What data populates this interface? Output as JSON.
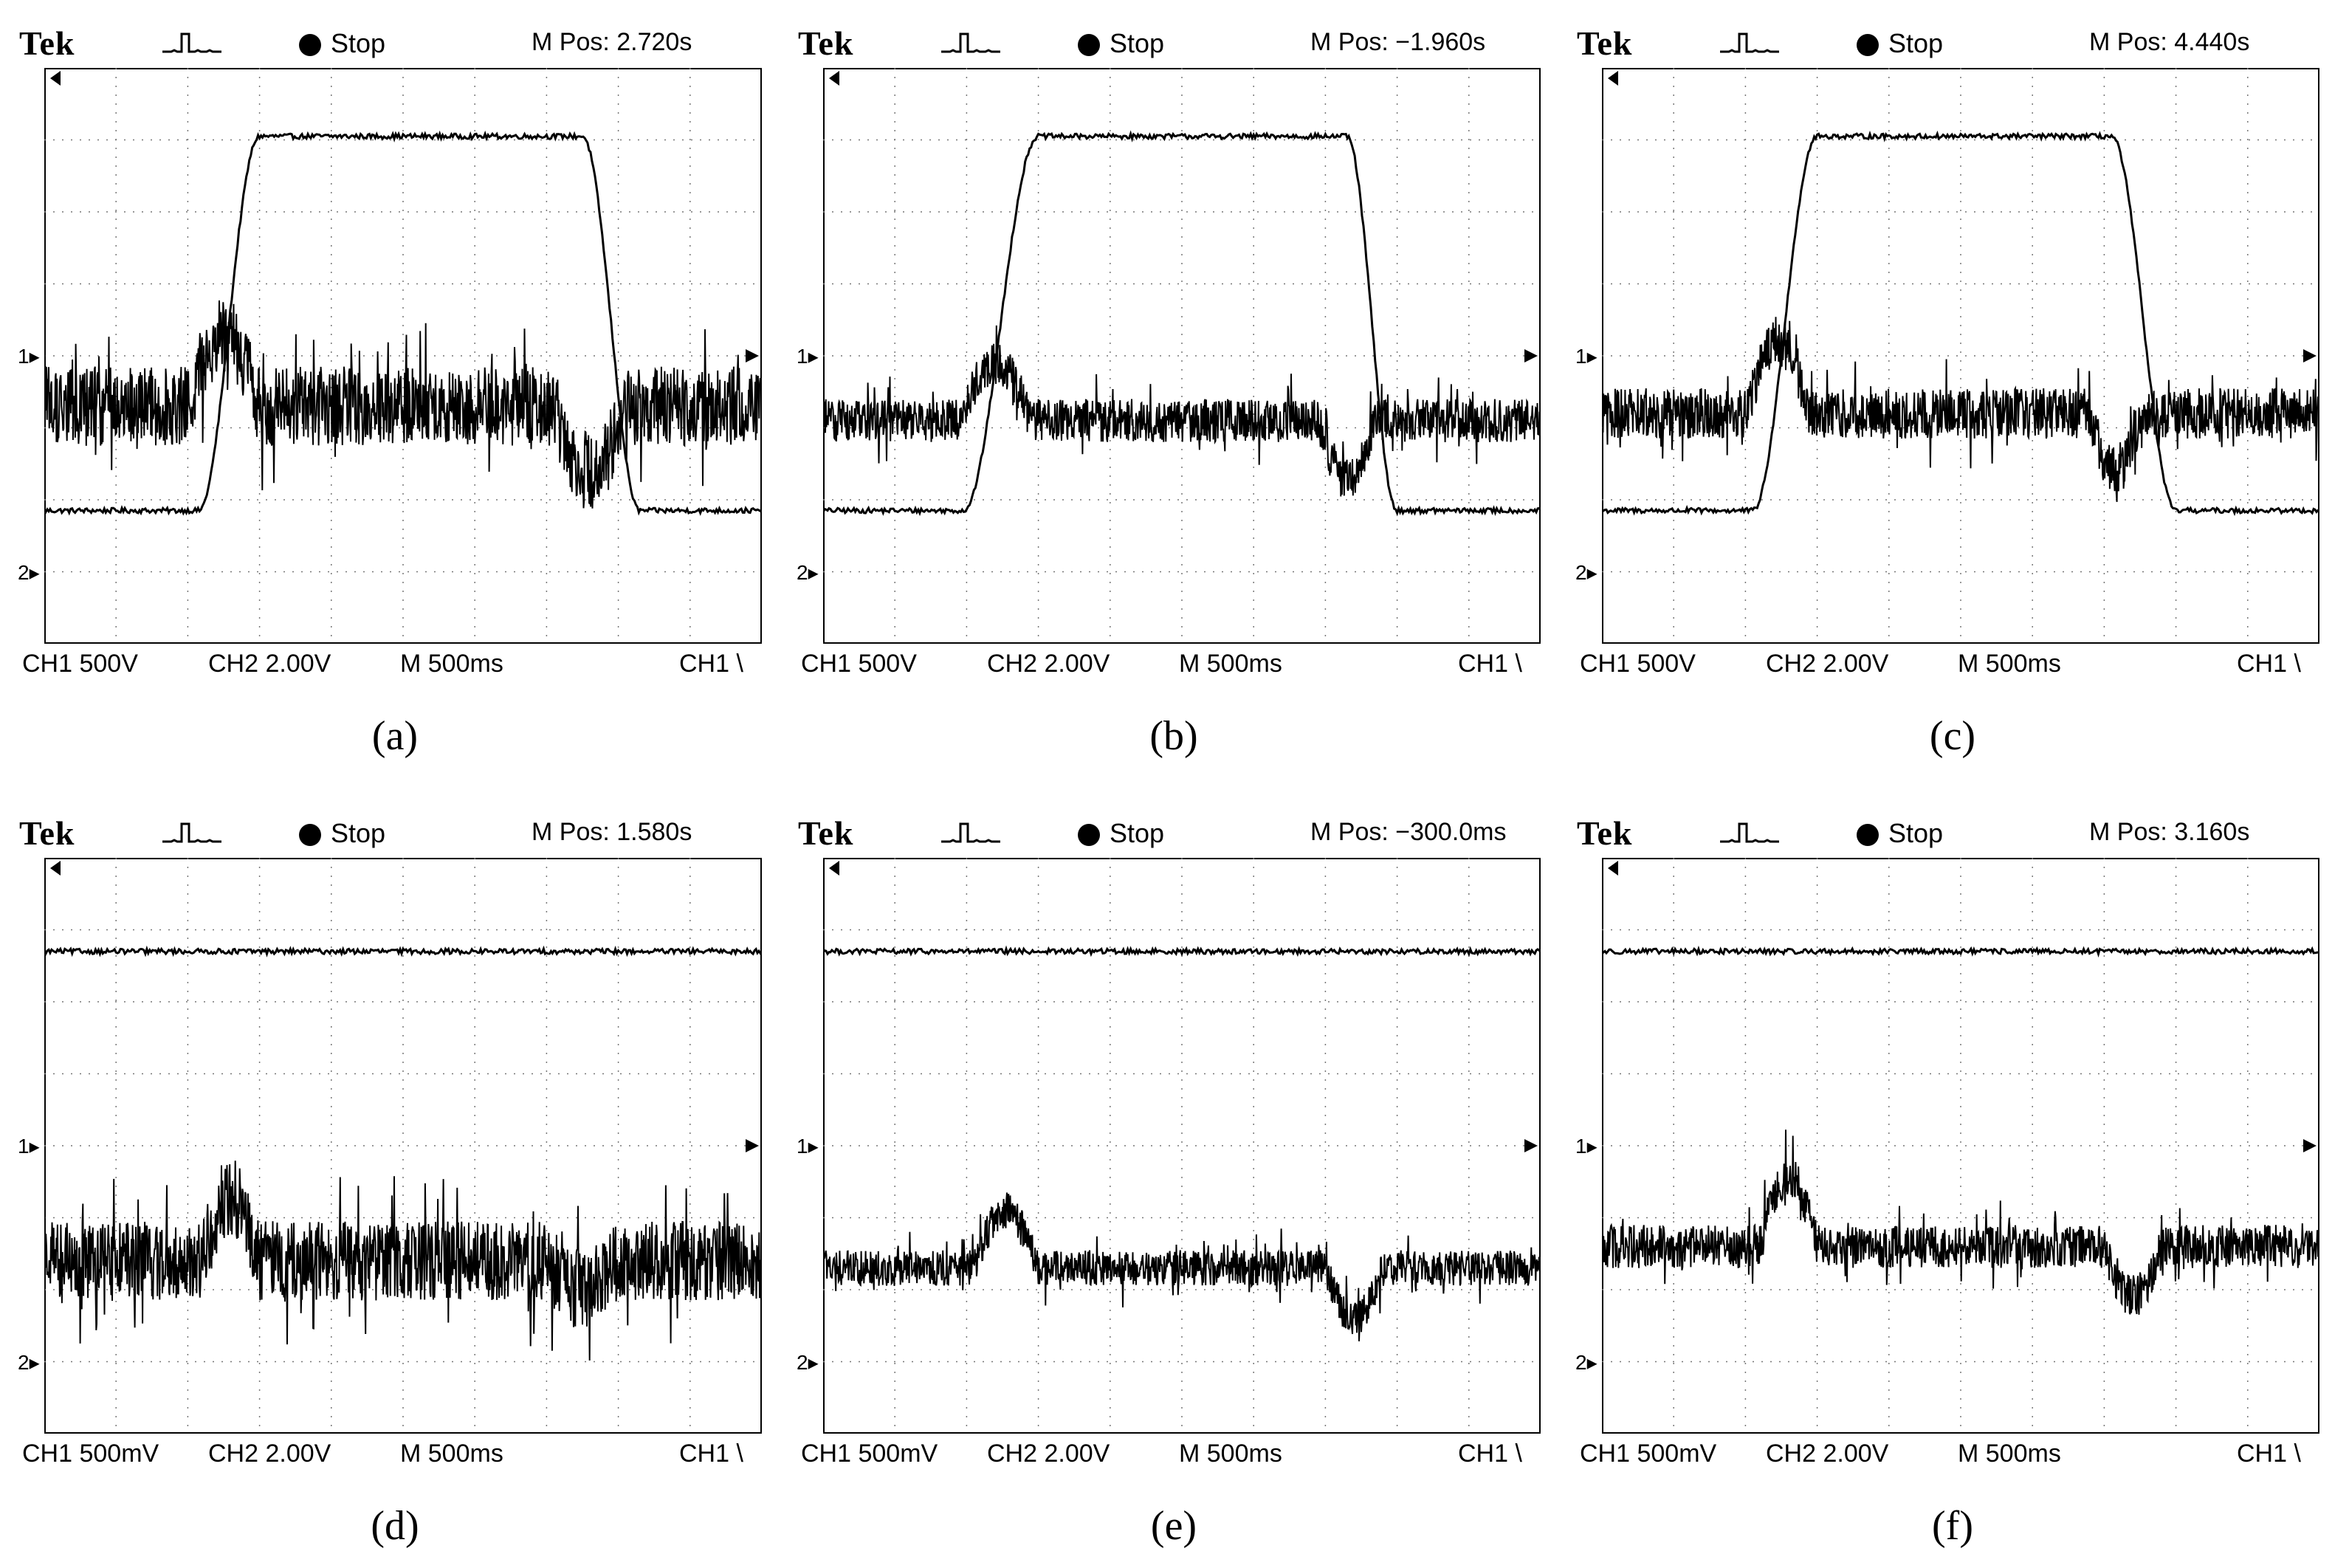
{
  "chart_data": [
    {
      "type": "line",
      "caption": "(a)",
      "header": {
        "brand": "Tek",
        "state": "Stop",
        "mpos": "M Pos: 2.720s"
      },
      "footer": {
        "ch1": "CH1  500V",
        "ch2": "CH2  2.00V",
        "timebase": "M 500ms",
        "trigger": "CH1 \\"
      },
      "ch1_profile": {
        "low_div": 1.85,
        "high_div": 7.05,
        "rise_div": [
          2.15,
          3.0
        ],
        "fall_div": [
          7.5,
          8.3
        ]
      },
      "ch2_profile": {
        "mean_div": 3.3,
        "noise": 0.55,
        "bump_div": [
          2.0,
          3.0
        ],
        "bump_amp": 1.0,
        "dip_div": [
          7.1,
          8.1
        ],
        "dip_amp": -0.9
      },
      "grid": true
    },
    {
      "type": "line",
      "caption": "(b)",
      "header": {
        "brand": "Tek",
        "state": "Stop",
        "mpos": "M Pos: −1.960s"
      },
      "footer": {
        "ch1": "CH1  500V",
        "ch2": "CH2  2.00V",
        "timebase": "M 500ms",
        "trigger": "CH1 \\"
      },
      "ch1_profile": {
        "low_div": 1.85,
        "high_div": 7.05,
        "rise_div": [
          1.95,
          3.0
        ],
        "fall_div": [
          7.3,
          8.0
        ]
      },
      "ch2_profile": {
        "mean_div": 3.1,
        "noise": 0.3,
        "bump_div": [
          1.9,
          2.9
        ],
        "bump_amp": 0.8,
        "dip_div": [
          6.9,
          7.7
        ],
        "dip_amp": -0.8
      },
      "grid": true
    },
    {
      "type": "line",
      "caption": "(c)",
      "header": {
        "brand": "Tek",
        "state": "Stop",
        "mpos": "M Pos: 4.440s"
      },
      "footer": {
        "ch1": "CH1  500V",
        "ch2": "CH2  2.00V",
        "timebase": "M 500ms",
        "trigger": "CH1 \\"
      },
      "ch1_profile": {
        "low_div": 1.85,
        "high_div": 7.05,
        "rise_div": [
          2.1,
          3.0
        ],
        "fall_div": [
          7.1,
          8.0
        ]
      },
      "ch2_profile": {
        "mean_div": 3.2,
        "noise": 0.35,
        "bump_div": [
          2.0,
          2.9
        ],
        "bump_amp": 1.0,
        "dip_div": [
          6.8,
          7.5
        ],
        "dip_amp": -0.8
      },
      "grid": true
    },
    {
      "type": "line",
      "caption": "(d)",
      "header": {
        "brand": "Tek",
        "state": "Stop",
        "mpos": "M Pos: 1.580s"
      },
      "footer": {
        "ch1": "CH1  500mV",
        "ch2": "CH2  2.00V",
        "timebase": "M 500ms",
        "trigger": "CH1 \\"
      },
      "ch1_profile": {
        "low_div": 6.7,
        "high_div": 6.7,
        "rise_div": [
          0,
          0
        ],
        "fall_div": [
          10,
          10
        ]
      },
      "ch2_profile": {
        "mean_div": 2.4,
        "noise": 0.55,
        "bump_div": [
          2.2,
          3.0
        ],
        "bump_amp": 0.9,
        "dip_div": [
          7.0,
          8.0
        ],
        "dip_amp": -0.4
      },
      "grid": true
    },
    {
      "type": "line",
      "caption": "(e)",
      "header": {
        "brand": "Tek",
        "state": "Stop",
        "mpos": "M Pos: −300.0ms"
      },
      "footer": {
        "ch1": "CH1  500mV",
        "ch2": "CH2  2.00V",
        "timebase": "M 500ms",
        "trigger": "CH1 \\"
      },
      "ch1_profile": {
        "low_div": 6.7,
        "high_div": 6.7,
        "rise_div": [
          0,
          0
        ],
        "fall_div": [
          10,
          10
        ]
      },
      "ch2_profile": {
        "mean_div": 2.3,
        "noise": 0.25,
        "bump_div": [
          2.1,
          3.0
        ],
        "bump_amp": 0.8,
        "dip_div": [
          7.0,
          7.8
        ],
        "dip_amp": -0.7
      },
      "grid": true
    },
    {
      "type": "line",
      "caption": "(f)",
      "header": {
        "brand": "Tek",
        "state": "Stop",
        "mpos": "M Pos: 3.160s"
      },
      "footer": {
        "ch1": "CH1  500mV",
        "ch2": "CH2  2.00V",
        "timebase": "M 500ms",
        "trigger": "CH1 \\"
      },
      "ch1_profile": {
        "low_div": 6.7,
        "high_div": 6.7,
        "rise_div": [
          0,
          0
        ],
        "fall_div": [
          10,
          10
        ]
      },
      "ch2_profile": {
        "mean_div": 2.6,
        "noise": 0.3,
        "bump_div": [
          2.2,
          3.0
        ],
        "bump_amp": 1.0,
        "dip_div": [
          7.0,
          7.8
        ],
        "dip_amp": -0.7
      },
      "grid": true
    }
  ]
}
